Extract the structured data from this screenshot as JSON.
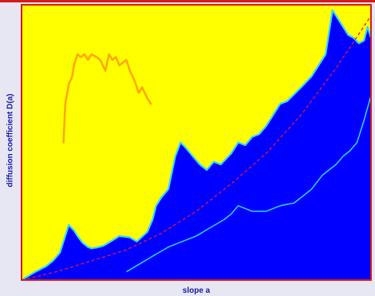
{
  "chart_data": {
    "type": "line",
    "xlabel": "slope a",
    "ylabel": "diffusion coefficient D(a)",
    "colors": {
      "background": "#ffff00",
      "fill": "#0000ff",
      "outline": "#33d6ff",
      "fit": "#e8173a",
      "inset": "#ffa500",
      "frame": "#d61a1a"
    },
    "series": [
      {
        "style": "filled-outline",
        "x": [
          0.0,
          0.02,
          0.04,
          0.07,
          0.09,
          0.11,
          0.135,
          0.15,
          0.16,
          0.175,
          0.19,
          0.2,
          0.215,
          0.235,
          0.255,
          0.28,
          0.31,
          0.33,
          0.36,
          0.375,
          0.385,
          0.4,
          0.42,
          0.44,
          0.455,
          0.47,
          0.49,
          0.51,
          0.53,
          0.55,
          0.57,
          0.6,
          0.62,
          0.64,
          0.66,
          0.68,
          0.7,
          0.72,
          0.74,
          0.76,
          0.8,
          0.83,
          0.85,
          0.87,
          0.88,
          0.89,
          0.905,
          0.92,
          0.935,
          0.95,
          0.965,
          0.98,
          0.99,
          1.0
        ],
        "y": [
          0.0,
          0.015,
          0.03,
          0.05,
          0.07,
          0.1,
          0.2,
          0.18,
          0.16,
          0.135,
          0.12,
          0.115,
          0.118,
          0.125,
          0.14,
          0.16,
          0.155,
          0.14,
          0.175,
          0.22,
          0.27,
          0.3,
          0.33,
          0.45,
          0.5,
          0.48,
          0.45,
          0.42,
          0.4,
          0.43,
          0.42,
          0.46,
          0.5,
          0.49,
          0.52,
          0.53,
          0.56,
          0.6,
          0.64,
          0.65,
          0.7,
          0.74,
          0.78,
          0.82,
          0.9,
          0.98,
          0.95,
          0.92,
          0.89,
          0.88,
          0.86,
          0.87,
          0.92,
          0.88
        ]
      },
      {
        "style": "line",
        "x": [
          0.3,
          0.34,
          0.38,
          0.42,
          0.46,
          0.5,
          0.54,
          0.58,
          0.6,
          0.62,
          0.64,
          0.66,
          0.7,
          0.74,
          0.78,
          0.8,
          0.83,
          0.86,
          0.88,
          0.9,
          0.92,
          0.94,
          0.96,
          0.98,
          1.0
        ],
        "y": [
          0.03,
          0.06,
          0.09,
          0.12,
          0.14,
          0.16,
          0.19,
          0.22,
          0.24,
          0.27,
          0.26,
          0.25,
          0.25,
          0.27,
          0.28,
          0.3,
          0.33,
          0.38,
          0.4,
          0.42,
          0.45,
          0.47,
          0.5,
          0.58,
          0.67
        ]
      },
      {
        "style": "dashed",
        "x": [
          0.0,
          0.1,
          0.2,
          0.3,
          0.4,
          0.5,
          0.6,
          0.7,
          0.8,
          0.9,
          1.0
        ],
        "y": [
          0.0,
          0.03,
          0.07,
          0.11,
          0.17,
          0.25,
          0.35,
          0.46,
          0.6,
          0.77,
          0.96
        ]
      },
      {
        "style": "inset",
        "x": [
          0.12,
          0.125,
          0.135,
          0.145,
          0.15,
          0.16,
          0.17,
          0.18,
          0.19,
          0.2,
          0.215,
          0.225,
          0.24,
          0.25,
          0.26,
          0.27,
          0.28,
          0.29,
          0.3,
          0.31,
          0.325,
          0.335,
          0.345,
          0.36,
          0.37
        ],
        "y": [
          0.5,
          0.64,
          0.71,
          0.74,
          0.78,
          0.82,
          0.81,
          0.82,
          0.8,
          0.82,
          0.81,
          0.8,
          0.76,
          0.82,
          0.8,
          0.81,
          0.78,
          0.79,
          0.8,
          0.76,
          0.72,
          0.68,
          0.7,
          0.66,
          0.64
        ]
      }
    ]
  }
}
